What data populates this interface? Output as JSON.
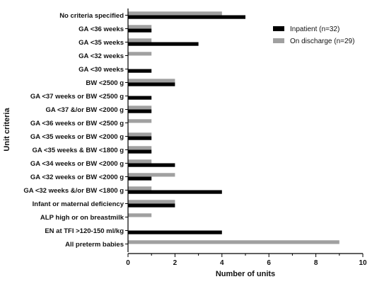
{
  "chart_data": {
    "type": "bar",
    "orientation": "horizontal",
    "categories": [
      "No criteria specified",
      "GA <36 weeks",
      "GA <35 weeks",
      "GA <32 weeks",
      "GA <30 weeks",
      "BW <2500 g",
      "GA <37 weeks or BW <2500 g",
      "GA <37 &/or BW <2000 g",
      "GA <36 weeks or BW <2500 g",
      "GA <35 weeks or BW <2000 g",
      "GA <35 weeks & BW <1800 g",
      "GA <34 weeks or BW <2000 g",
      "GA <32 weeks or BW <2000 g",
      "GA <32 weeks &/or BW <1800 g",
      "Infant or maternal deficiency",
      "ALP high or on breastmilk",
      "EN at TFI >120-150 ml/kg",
      "All preterm babies"
    ],
    "series": [
      {
        "name": "Inpatient (n=32)",
        "color": "#000000",
        "values": [
          5,
          1,
          3,
          0,
          1,
          2,
          1,
          1,
          0,
          1,
          1,
          2,
          1,
          4,
          2,
          0,
          4,
          0
        ]
      },
      {
        "name": "On discharge (n=29)",
        "color": "#a0a0a0",
        "values": [
          4,
          1,
          1,
          1,
          0,
          2,
          0,
          1,
          1,
          1,
          1,
          1,
          2,
          1,
          2,
          1,
          0,
          9
        ]
      }
    ],
    "xlabel": "Number of units",
    "ylabel": "Unit criteria",
    "xlim": [
      0,
      10
    ],
    "xticks": [
      0,
      2,
      4,
      6,
      8,
      10
    ],
    "grid": false,
    "legend": "top-right"
  }
}
